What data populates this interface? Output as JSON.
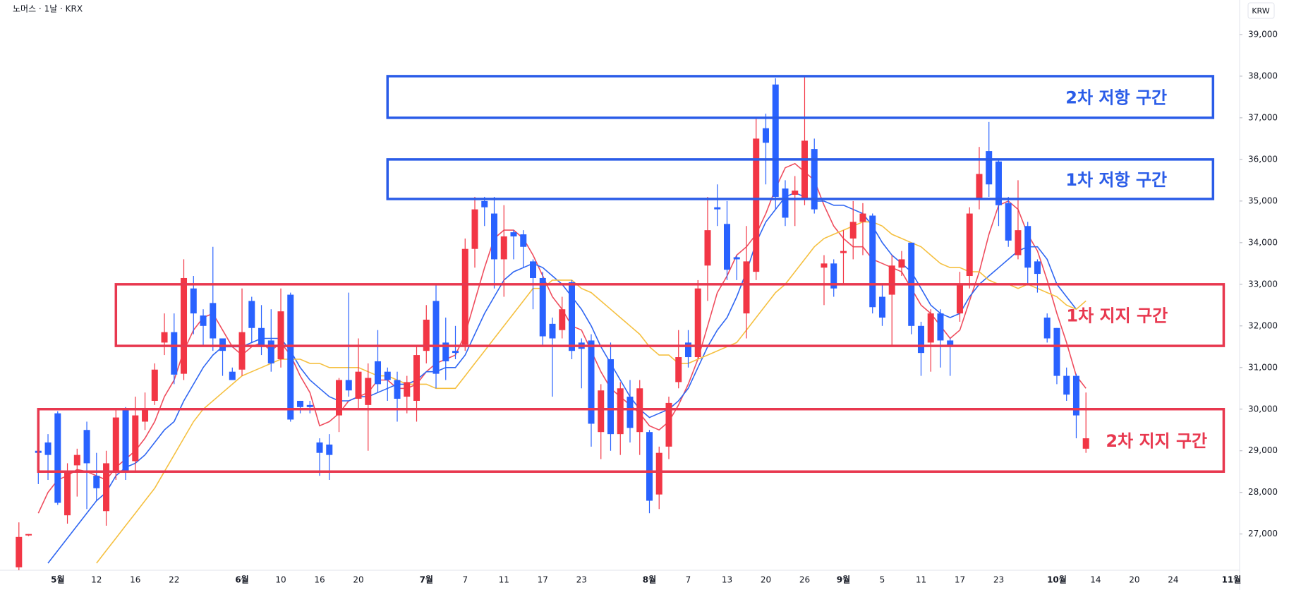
{
  "chart_data": {
    "type": "candlestick",
    "title": "노머스 · 1날 · KRX",
    "currency": "KRW",
    "up_color": "#f23645",
    "down_color": "#2962ff",
    "categories": [
      null,
      null,
      null,
      null,
      "5월",
      null,
      null,
      null,
      "12",
      null,
      null,
      null,
      "16",
      null,
      null,
      null,
      "22",
      null,
      null,
      null,
      null,
      null,
      null,
      "6월",
      null,
      null,
      null,
      "10",
      null,
      null,
      null,
      "16",
      null,
      null,
      null,
      "20",
      null,
      null,
      null,
      null,
      null,
      null,
      "7월",
      null,
      null,
      null,
      "7",
      null,
      null,
      null,
      "11",
      null,
      null,
      null,
      "17",
      null,
      null,
      null,
      "23",
      null,
      null,
      null,
      null,
      null,
      null,
      "8월",
      null,
      null,
      null,
      "7",
      null,
      null,
      null,
      "13",
      null,
      null,
      null,
      "20",
      null,
      null,
      null,
      "26",
      null,
      null,
      null,
      "9월",
      null,
      null,
      null,
      "5",
      null,
      null,
      null,
      "11",
      null,
      null,
      null,
      "17",
      null,
      null,
      null,
      "23",
      null,
      null,
      null,
      null,
      null,
      "10월",
      null,
      null,
      null,
      "14",
      null,
      null,
      null,
      "20",
      null,
      null,
      null,
      "24",
      null,
      null,
      null,
      null,
      null,
      "11월"
    ],
    "open": [
      26200,
      27000,
      29000,
      29200,
      29900,
      27450,
      28650,
      29500,
      28400,
      27550,
      28500,
      30000,
      28750,
      29700,
      30200,
      31600,
      31850,
      30850,
      32900,
      32250,
      32550,
      31700,
      30900,
      30950,
      32600,
      31950,
      31650,
      31200,
      32750,
      30200,
      30100,
      29200,
      29150,
      29850,
      30700,
      30250,
      30100,
      31150,
      30900,
      30700,
      30300,
      30200,
      31400,
      32600,
      31600,
      31400,
      31550,
      33850,
      35000,
      34700,
      33600,
      34250,
      34200,
      33550,
      33150,
      32050,
      31900,
      33050,
      31600,
      31650,
      29450,
      31200,
      29400,
      30300,
      29450,
      29450,
      27950,
      29100,
      30650,
      31600,
      31250,
      33450,
      34850,
      34450,
      33650,
      32300,
      33300,
      36750,
      37800,
      35300,
      35150,
      35050,
      36250,
      33400,
      33500,
      33750,
      34100,
      34500,
      34650,
      32700,
      32750,
      33400,
      34000,
      32000,
      31600,
      32300,
      31650,
      32300,
      33200,
      35050,
      36200,
      35950,
      34950,
      33700,
      34400,
      33550,
      32200,
      31950,
      30800,
      30800,
      29050,
      null,
      null,
      null,
      null,
      null,
      null,
      null,
      null,
      null,
      null,
      null,
      null,
      null,
      null,
      null
    ],
    "high": [
      27280,
      27000,
      29400,
      29400,
      29950,
      28700,
      29050,
      29700,
      28950,
      29000,
      30000,
      30050,
      30300,
      30400,
      31100,
      32300,
      32300,
      33600,
      33200,
      32400,
      33900,
      31700,
      31000,
      32900,
      32700,
      32500,
      32400,
      32900,
      32800,
      30200,
      30200,
      29300,
      29400,
      30750,
      32800,
      31700,
      31100,
      31900,
      31000,
      30900,
      30800,
      31500,
      32500,
      33000,
      32200,
      32000,
      34100,
      35100,
      35100,
      35100,
      34900,
      34300,
      34300,
      33600,
      33300,
      32200,
      32700,
      33100,
      31700,
      31800,
      30600,
      31600,
      30650,
      30700,
      30700,
      29500,
      29100,
      30300,
      31900,
      31900,
      33100,
      35100,
      35400,
      35000,
      33700,
      34400,
      37000,
      37100,
      37950,
      35500,
      35600,
      38000,
      36500,
      33700,
      33600,
      34300,
      35000,
      34950,
      34700,
      33000,
      33700,
      33800,
      34000,
      32100,
      32400,
      32400,
      31700,
      33300,
      34850,
      36300,
      36900,
      36000,
      35100,
      35500,
      34500,
      33600,
      32300,
      31950,
      31000,
      30850,
      30400,
      null,
      null,
      null,
      null,
      null,
      null,
      null,
      null,
      null,
      null,
      null,
      null,
      null,
      null,
      null
    ],
    "low": [
      26100,
      26950,
      28200,
      28300,
      27700,
      27250,
      27900,
      27600,
      27800,
      27200,
      28300,
      28300,
      28500,
      29500,
      30100,
      31300,
      30600,
      30700,
      31800,
      31500,
      31400,
      30800,
      30700,
      30800,
      31600,
      31300,
      30900,
      31000,
      29700,
      29900,
      29900,
      28400,
      28300,
      29450,
      30300,
      30000,
      29000,
      30400,
      30200,
      29700,
      29900,
      29700,
      31100,
      30500,
      30700,
      31200,
      31400,
      33400,
      34400,
      32900,
      32700,
      33600,
      33400,
      32400,
      31500,
      30300,
      31700,
      31200,
      30500,
      29100,
      28800,
      29000,
      28900,
      29200,
      28900,
      27500,
      27600,
      28800,
      30500,
      31000,
      31200,
      32600,
      34400,
      33100,
      33100,
      31700,
      33100,
      35400,
      34800,
      34400,
      34400,
      34900,
      34700,
      32500,
      32700,
      33000,
      33600,
      33700,
      32300,
      32000,
      31500,
      33200,
      31800,
      30800,
      30900,
      31000,
      30800,
      32100,
      32900,
      34800,
      35100,
      34400,
      33900,
      33600,
      33000,
      32800,
      31600,
      30600,
      30200,
      29300,
      28950,
      null,
      null,
      null,
      null,
      null,
      null,
      null,
      null,
      null,
      null,
      null,
      null,
      null,
      null,
      null
    ],
    "close": [
      26930,
      27000,
      28950,
      28900,
      27750,
      28500,
      28900,
      28700,
      28100,
      28700,
      29800,
      28500,
      29850,
      30000,
      30950,
      31850,
      30830,
      33150,
      32300,
      32000,
      31700,
      31400,
      30700,
      31850,
      31950,
      31500,
      31100,
      32350,
      29750,
      30050,
      30050,
      28950,
      28900,
      30700,
      30450,
      30900,
      30750,
      30600,
      30700,
      30250,
      30650,
      31300,
      32150,
      30850,
      31150,
      31350,
      33850,
      34800,
      34850,
      33600,
      34150,
      34150,
      33900,
      33150,
      31750,
      31700,
      32400,
      31400,
      31450,
      29650,
      30450,
      29400,
      30500,
      29550,
      30500,
      27800,
      28950,
      30150,
      31250,
      31250,
      32900,
      34300,
      34800,
      33350,
      33600,
      33550,
      36500,
      36400,
      35100,
      34600,
      35250,
      36450,
      34800,
      33500,
      32900,
      33800,
      34500,
      34700,
      32450,
      32200,
      33450,
      33600,
      32000,
      31350,
      32300,
      31650,
      31500,
      33000,
      34700,
      35650,
      35400,
      34900,
      34050,
      34300,
      33400,
      33250,
      31700,
      30800,
      30350,
      29850,
      29300,
      null,
      null,
      null,
      null,
      null,
      null,
      null,
      null,
      null,
      null,
      null,
      null,
      null,
      null,
      null
    ],
    "series": [
      {
        "color": "#ef4d5e",
        "values": [
          null,
          null,
          27500,
          28000,
          28300,
          28400,
          28550,
          28500,
          28400,
          28300,
          28600,
          28800,
          29000,
          29300,
          29700,
          30300,
          30700,
          31400,
          31900,
          32200,
          32300,
          31900,
          31500,
          31300,
          31500,
          31600,
          31400,
          31600,
          31300,
          30800,
          30400,
          29600,
          29700,
          29900,
          30200,
          30300,
          30400,
          30700,
          30700,
          30500,
          30500,
          30600,
          30900,
          31100,
          31200,
          31300,
          31800,
          32600,
          33400,
          34100,
          34300,
          34300,
          34100,
          33700,
          33200,
          32700,
          32400,
          32000,
          31900,
          31400,
          30900,
          30500,
          30300,
          30100,
          29900,
          29600,
          29500,
          29700,
          30100,
          30600,
          31200,
          32000,
          32800,
          33200,
          33700,
          33900,
          34200,
          34700,
          35300,
          35800,
          35900,
          35700,
          35500,
          34900,
          34400,
          34100,
          33900,
          33900,
          33600,
          33500,
          33400,
          33300,
          32900,
          32500,
          32300,
          32000,
          31700,
          31900,
          32600,
          33300,
          34200,
          34900,
          35000,
          34800,
          34200,
          33800,
          33100,
          32300,
          31600,
          30800,
          30500,
          null,
          null,
          null,
          null,
          null,
          null,
          null,
          null,
          null,
          null,
          null,
          null,
          null,
          null,
          null
        ]
      },
      {
        "color": "#2f66f2",
        "values": [
          null,
          null,
          null,
          26300,
          26600,
          26900,
          27200,
          27500,
          27800,
          28000,
          28400,
          28600,
          28700,
          28900,
          29200,
          29500,
          29700,
          30200,
          30600,
          31000,
          31300,
          31500,
          31500,
          31500,
          31600,
          31700,
          31700,
          31700,
          31400,
          31000,
          30700,
          30500,
          30300,
          30200,
          30200,
          30300,
          30300,
          30400,
          30500,
          30600,
          30600,
          30700,
          30900,
          30900,
          31000,
          31000,
          31300,
          31800,
          32300,
          32700,
          33100,
          33300,
          33400,
          33500,
          33400,
          33200,
          33000,
          32700,
          32400,
          32000,
          31500,
          31100,
          30700,
          30300,
          30000,
          29800,
          29900,
          30000,
          30200,
          30500,
          31000,
          31500,
          31900,
          32200,
          32700,
          33300,
          34000,
          34500,
          34800,
          35100,
          35200,
          35100,
          35000,
          35000,
          34900,
          34900,
          34800,
          34700,
          34400,
          34000,
          33700,
          33500,
          33300,
          32900,
          32500,
          32300,
          32200,
          32300,
          32700,
          33000,
          33200,
          33400,
          33600,
          33800,
          33900,
          33900,
          33600,
          33000,
          32700,
          32400,
          null,
          null,
          null,
          null,
          null,
          null,
          null,
          null,
          null,
          null,
          null,
          null,
          null,
          null,
          null,
          null
        ]
      },
      {
        "color": "#f5c040",
        "values": [
          null,
          null,
          null,
          null,
          null,
          null,
          null,
          null,
          26300,
          26600,
          26900,
          27200,
          27500,
          27800,
          28100,
          28500,
          28900,
          29300,
          29700,
          30000,
          30200,
          30400,
          30600,
          30800,
          30900,
          31000,
          31100,
          31200,
          31200,
          31200,
          31100,
          31100,
          31000,
          31000,
          31000,
          31000,
          30900,
          30800,
          30800,
          30700,
          30600,
          30600,
          30600,
          30500,
          30500,
          30500,
          30800,
          31100,
          31400,
          31700,
          32000,
          32300,
          32600,
          32900,
          32900,
          33100,
          33100,
          33100,
          32900,
          32800,
          32600,
          32400,
          32200,
          32000,
          31800,
          31500,
          31300,
          31300,
          31100,
          31100,
          31200,
          31300,
          31400,
          31500,
          31600,
          31900,
          32200,
          32500,
          32800,
          33000,
          33300,
          33600,
          33900,
          34100,
          34200,
          34300,
          34400,
          34500,
          34500,
          34400,
          34200,
          34100,
          34000,
          33900,
          33700,
          33500,
          33400,
          33400,
          33300,
          33300,
          33100,
          33000,
          33000,
          32900,
          33000,
          32900,
          32800,
          32700,
          32500,
          32400,
          32600,
          null,
          null,
          null,
          null,
          null,
          null,
          null,
          null,
          null,
          null,
          null,
          null,
          null,
          null,
          null
        ]
      }
    ],
    "annotations": [
      {
        "text": "2차 저항 구간",
        "ylim": [
          37000,
          38000
        ],
        "color": "#2a5ce8"
      },
      {
        "text": "1차 저항 구간",
        "ylim": [
          35050,
          36000
        ],
        "color": "#2a5ce8"
      },
      {
        "text": "1차 지지 구간",
        "ylim": [
          31520,
          33000
        ],
        "color": "#e8384f"
      },
      {
        "text": "2차 지지 구간",
        "ylim": [
          28500,
          30000
        ],
        "color": "#e8384f"
      }
    ],
    "ylim": [
      26130,
      39830
    ],
    "yticks": [
      {
        "value": 27000,
        "label": "27,000"
      },
      {
        "value": 28000,
        "label": "28,000"
      },
      {
        "value": 29000,
        "label": "29,000"
      },
      {
        "value": 30000,
        "label": "30,000"
      },
      {
        "value": 31000,
        "label": "31,000"
      },
      {
        "value": 32000,
        "label": "32,000"
      },
      {
        "value": 33000,
        "label": "33,000"
      },
      {
        "value": 34000,
        "label": "34,000"
      },
      {
        "value": 35000,
        "label": "35,000"
      },
      {
        "value": 36000,
        "label": "36,000"
      },
      {
        "value": 37000,
        "label": "37,000"
      },
      {
        "value": 38000,
        "label": "38,000"
      },
      {
        "value": 39000,
        "label": "39,000"
      }
    ]
  }
}
